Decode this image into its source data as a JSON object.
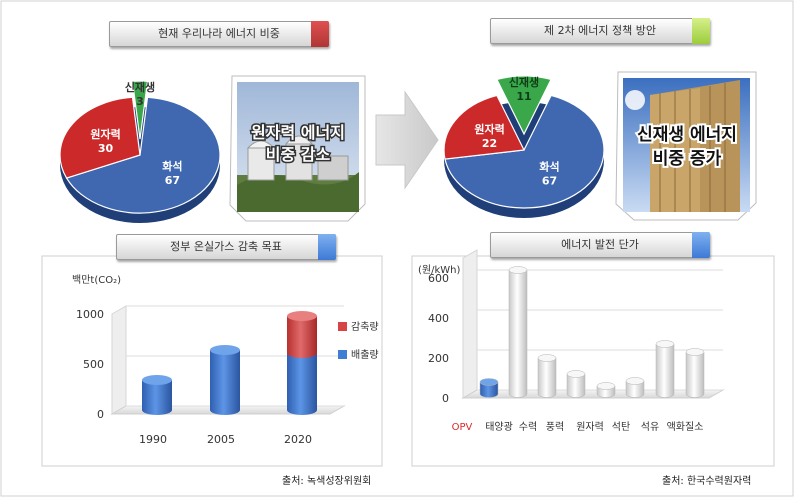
{
  "sections": {
    "current_mix": {
      "label": "현재 우리나라 에너지 비중",
      "tag_color": "#e05050"
    },
    "policy_mix": {
      "label": "제 2차 에너지 정책 방안",
      "tag_color": "#9ccc3c"
    },
    "ghg_target": {
      "label": "정부 온실가스 감축 목표",
      "tag_color": "#3d7ad6"
    },
    "gen_cost": {
      "label": "에너지 발전 단가",
      "tag_color": "#3d7ad6"
    }
  },
  "photo_captions": {
    "nuclear": [
      "원자력 에너지",
      "비중 감소"
    ],
    "renewable": [
      "신재생 에너지",
      "비중 증가"
    ]
  },
  "sources": {
    "left": "출처: 녹색성장위원회",
    "right": "출처: 한국수력원자력"
  },
  "colors": {
    "nuclear": "#cc2a2a",
    "thermal": "#3f68b0",
    "renewable": "#3aa84a",
    "emission": "#3f7ed4",
    "reduction": "#d84444",
    "opv": "#3f7ed4",
    "other_bar": "#e8e8e8",
    "opv_label": "#d62b2b"
  },
  "chart_data": [
    {
      "type": "pie",
      "slices": [
        {
          "label": "화석",
          "value": 67
        },
        {
          "label": "원자력",
          "value": 30
        },
        {
          "label": "신재생",
          "value": 3
        }
      ]
    },
    {
      "type": "pie",
      "slices": [
        {
          "label": "화석",
          "value": 67
        },
        {
          "label": "원자력",
          "value": 22
        },
        {
          "label": "신재생",
          "value": 11
        }
      ]
    },
    {
      "type": "bar",
      "stacked": true,
      "ylabel": "백만t(CO₂)",
      "ylim": [
        0,
        1000
      ],
      "yticks": [
        0,
        500,
        1000
      ],
      "categories": [
        "1990",
        "2005",
        "2020"
      ],
      "series": [
        {
          "name": "배출량",
          "values": [
            300,
            600,
            570
          ]
        },
        {
          "name": "감축량",
          "values": [
            0,
            0,
            370
          ]
        }
      ],
      "legend": "right"
    },
    {
      "type": "bar",
      "ylabel": "(원/kWh)",
      "ylim": [
        0,
        700
      ],
      "yticks": [
        0,
        200,
        400,
        600
      ],
      "categories": [
        "OPV",
        "태양광",
        "수력",
        "풍력",
        "원자력",
        "석탄",
        "석유",
        "액화질소"
      ],
      "values": [
        60,
        620,
        180,
        100,
        40,
        65,
        250,
        210
      ]
    }
  ]
}
